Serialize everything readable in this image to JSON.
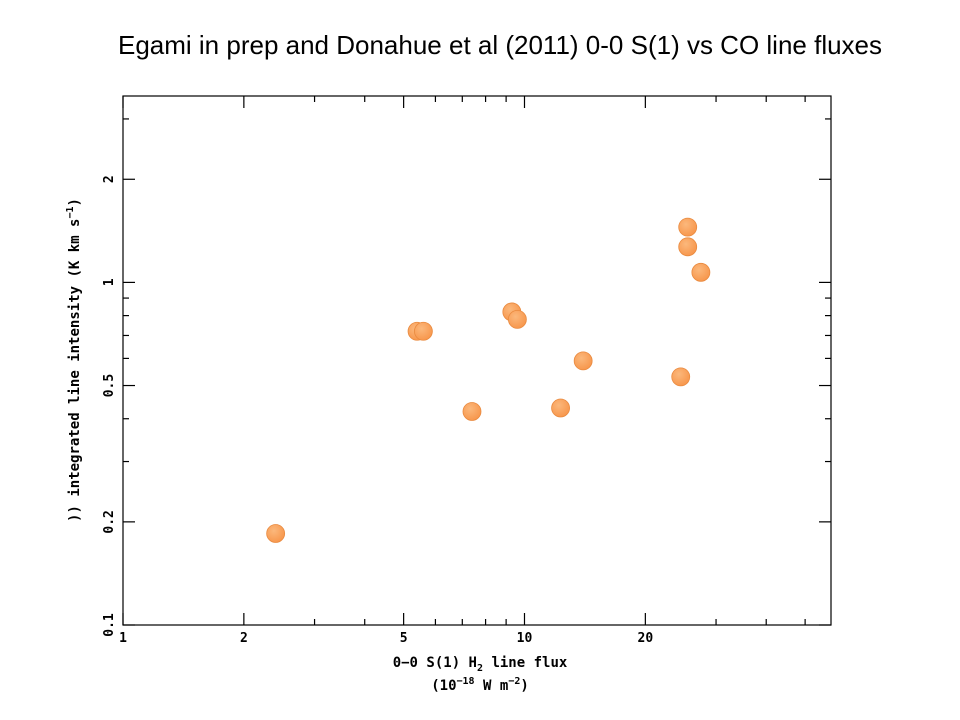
{
  "title": "Egami in prep and Donahue et al (2011) 0-0 S(1) vs CO line fluxes",
  "chart_data": {
    "type": "scatter",
    "title": "Egami in prep and Donahue et al (2011) 0-0 S(1) vs CO line fluxes",
    "xlabel": "0-0 S(1) H2 line flux (10^-18 W m^-2)",
    "ylabel": ")) integrated line intensity (K km s^-1)",
    "xscale": "log",
    "yscale": "log",
    "xlim": [
      1,
      58
    ],
    "ylim": [
      0.1,
      3.5
    ],
    "x_ticks": [
      "1",
      "2",
      "5",
      "10",
      "20"
    ],
    "y_ticks": [
      "0.1",
      "0.2",
      "0.5",
      "1",
      "2"
    ],
    "marker_color": "#F7954A",
    "points": [
      {
        "x": 2.4,
        "y": 0.185
      },
      {
        "x": 5.4,
        "y": 0.72
      },
      {
        "x": 5.6,
        "y": 0.72
      },
      {
        "x": 7.4,
        "y": 0.42
      },
      {
        "x": 9.3,
        "y": 0.82
      },
      {
        "x": 9.6,
        "y": 0.78
      },
      {
        "x": 12.3,
        "y": 0.43
      },
      {
        "x": 14.0,
        "y": 0.59
      },
      {
        "x": 24.5,
        "y": 0.53
      },
      {
        "x": 25.5,
        "y": 1.45
      },
      {
        "x": 25.5,
        "y": 1.27
      },
      {
        "x": 27.5,
        "y": 1.07
      }
    ]
  }
}
